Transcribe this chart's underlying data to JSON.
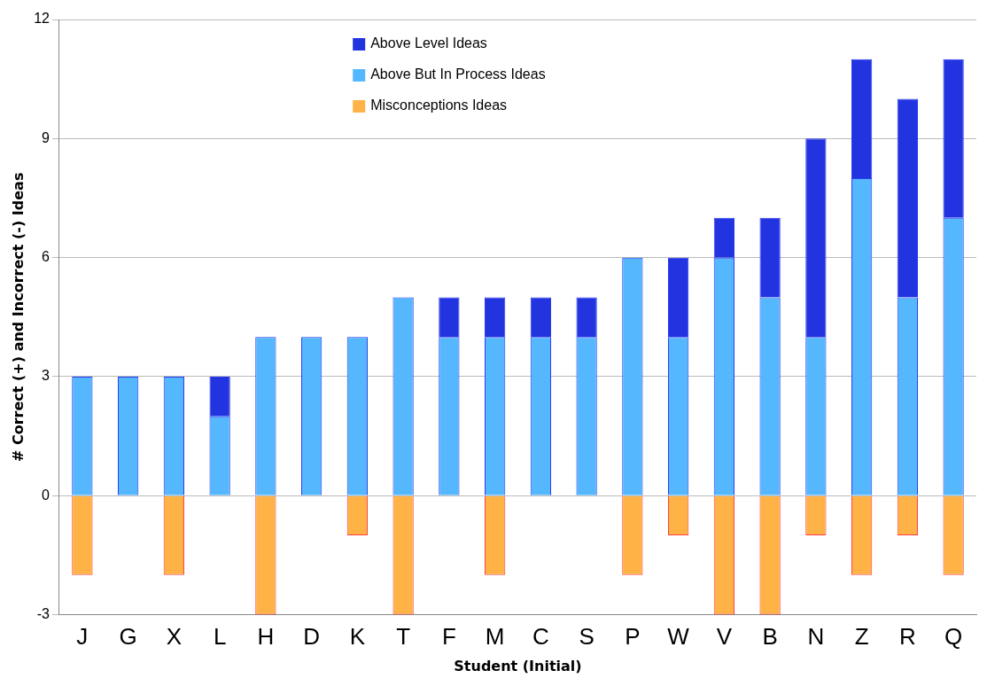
{
  "chart_data": {
    "type": "bar",
    "stacked": true,
    "xlabel": "Student (Initial)",
    "ylabel": "# Correct (+) and Incorrect (-) Ideas",
    "categories": [
      "J",
      "G",
      "X",
      "L",
      "H",
      "D",
      "K",
      "T",
      "F",
      "M",
      "C",
      "S",
      "P",
      "W",
      "V",
      "B",
      "N",
      "Z",
      "R",
      "Q"
    ],
    "series": [
      {
        "name": "Above But In Process Ideas",
        "color": "#55b8ff",
        "values": [
          3,
          3,
          3,
          2,
          4,
          4,
          4,
          5,
          4,
          4,
          4,
          4,
          6,
          4,
          6,
          5,
          4,
          8,
          5,
          7
        ]
      },
      {
        "name": "Above Level Ideas",
        "color": "#2233e0",
        "values": [
          0,
          0,
          0,
          1,
          0,
          0,
          0,
          0,
          1,
          1,
          1,
          1,
          0,
          2,
          1,
          2,
          5,
          3,
          5,
          4
        ]
      },
      {
        "name": "Misconceptions Ideas",
        "color": "#ffb347",
        "values": [
          -2,
          0,
          -2,
          0,
          -3,
          0,
          -1,
          -3,
          0,
          -2,
          0,
          0,
          -2,
          -1,
          -3,
          -3,
          -1,
          -2,
          -1,
          -2
        ]
      }
    ],
    "ylim": [
      -3,
      12
    ],
    "yticks": [
      -3,
      0,
      3,
      6,
      9,
      12
    ],
    "grid": "y",
    "legend": "top"
  }
}
